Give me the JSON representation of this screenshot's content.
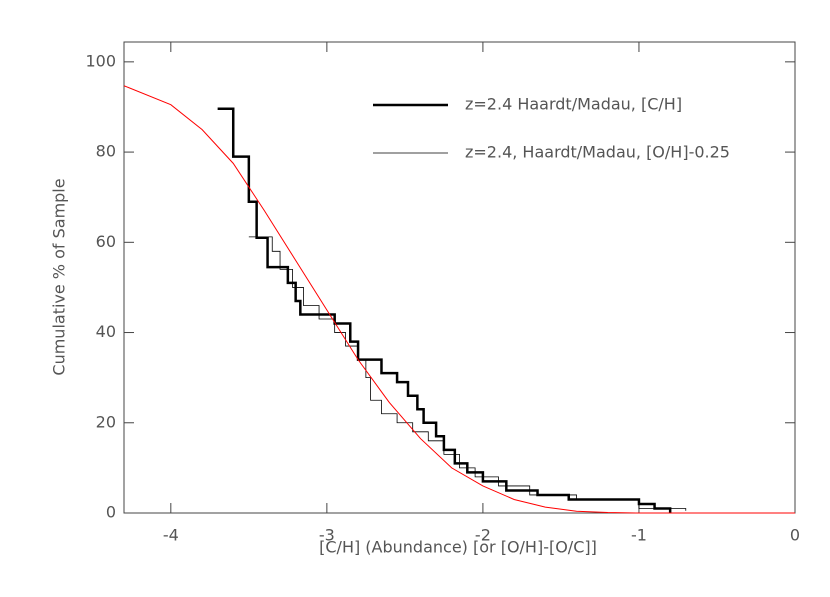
{
  "chart_data": {
    "type": "line",
    "xlabel": "[C/H] (Abundance) [or [O/H]-[O/C]]",
    "ylabel": "Cumulative % of Sample",
    "xlim": [
      -4.3,
      0
    ],
    "ylim": [
      0,
      104.4
    ],
    "xticks": [
      -4,
      -3,
      -2,
      -1,
      0
    ],
    "yticks": [
      0,
      20,
      40,
      60,
      80,
      100
    ],
    "legend": "upper right",
    "series": [
      {
        "name": "z=2.4 Haardt/Madau, [C/H]",
        "color": "#000000",
        "line_width": 2.5,
        "x": [
          -3.7,
          -3.6,
          -3.6,
          -3.5,
          -3.5,
          -3.45,
          -3.45,
          -3.38,
          -3.38,
          -3.25,
          -3.25,
          -3.2,
          -3.2,
          -3.17,
          -3.17,
          -2.95,
          -2.95,
          -2.85,
          -2.85,
          -2.8,
          -2.8,
          -2.65,
          -2.65,
          -2.55,
          -2.55,
          -2.48,
          -2.48,
          -2.42,
          -2.42,
          -2.38,
          -2.38,
          -2.3,
          -2.3,
          -2.25,
          -2.25,
          -2.18,
          -2.18,
          -2.1,
          -2.1,
          -2.0,
          -2.0,
          -1.85,
          -1.85,
          -1.65,
          -1.65,
          -1.45,
          -1.45,
          -1.0,
          -1.0,
          -0.9,
          -0.9,
          -0.8,
          -0.8
        ],
        "values": [
          89.6,
          89.6,
          79,
          79,
          69,
          69,
          61,
          61,
          54.5,
          54.5,
          51,
          51,
          47,
          47,
          44,
          44,
          42,
          42,
          38,
          38,
          34,
          34,
          31,
          31,
          29,
          29,
          26,
          26,
          23,
          23,
          20,
          20,
          17,
          17,
          14,
          14,
          11,
          11,
          9,
          9,
          7,
          7,
          5,
          5,
          4,
          4,
          3,
          3,
          2,
          2,
          1,
          1,
          0
        ]
      },
      {
        "name": "z=2.4, Haardt/Madau, [O/H]-0.25",
        "color": "#000000",
        "line_width": 0.8,
        "x": [
          -3.5,
          -3.35,
          -3.35,
          -3.3,
          -3.3,
          -3.22,
          -3.22,
          -3.15,
          -3.15,
          -3.05,
          -3.05,
          -2.95,
          -2.95,
          -2.88,
          -2.88,
          -2.8,
          -2.8,
          -2.75,
          -2.75,
          -2.72,
          -2.72,
          -2.65,
          -2.65,
          -2.55,
          -2.55,
          -2.45,
          -2.45,
          -2.35,
          -2.35,
          -2.25,
          -2.25,
          -2.15,
          -2.15,
          -2.05,
          -2.05,
          -1.9,
          -1.9,
          -1.7,
          -1.7,
          -1.4,
          -1.4,
          -1.0,
          -1.0,
          -0.7,
          -0.7
        ],
        "values": [
          61.2,
          61.2,
          58,
          58,
          54,
          54,
          50,
          50,
          46,
          46,
          43,
          43,
          40,
          40,
          37,
          37,
          34,
          34,
          30,
          30,
          25,
          25,
          22,
          22,
          20,
          20,
          18,
          18,
          16,
          16,
          13,
          13,
          10,
          10,
          8,
          8,
          6,
          6,
          4,
          4,
          3,
          3,
          1,
          1,
          0.5
        ]
      },
      {
        "color": "#ff0000",
        "line_width": 1,
        "x": [
          -4.3,
          -4.0,
          -3.8,
          -3.6,
          -3.4,
          -3.2,
          -3.0,
          -2.8,
          -2.6,
          -2.4,
          -2.2,
          -2.0,
          -1.8,
          -1.6,
          -1.4,
          -1.2,
          -1.0,
          0
        ],
        "values": [
          94.7,
          90.5,
          85,
          77.5,
          67,
          56,
          45,
          34,
          24.5,
          16.5,
          10,
          6,
          3,
          1.3,
          0.4,
          0.1,
          0,
          0
        ]
      }
    ]
  }
}
